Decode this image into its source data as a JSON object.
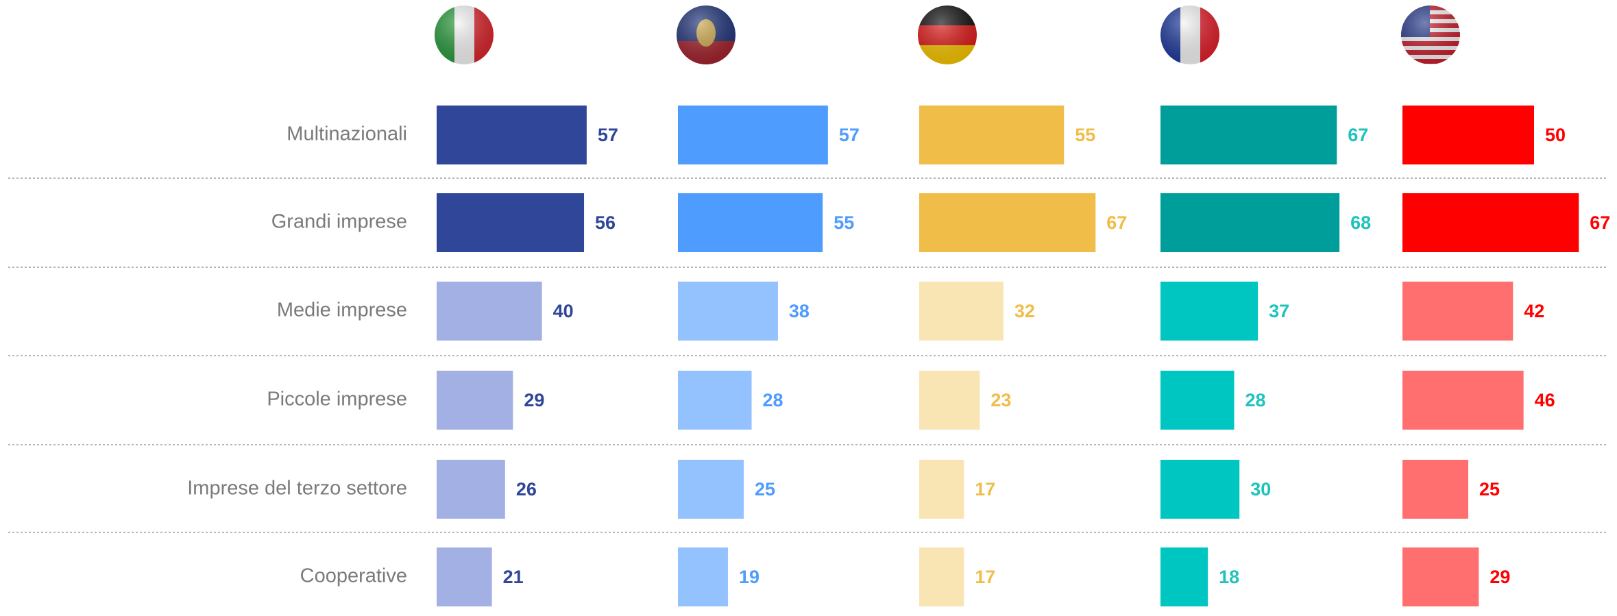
{
  "chart_data": {
    "type": "bar",
    "categories": [
      "Multinazionali",
      "Grandi imprese",
      "Medie imprese",
      "Piccole imprese",
      "Imprese del terzo settore",
      "Cooperative"
    ],
    "series": [
      {
        "values": [
          57,
          56,
          40,
          29,
          26,
          21
        ],
        "colors": [
          "#2f4699",
          "#2f4699",
          "#a3b0e3",
          "#a3b0e3",
          "#a3b0e3",
          "#a3b0e3"
        ],
        "label_color": "#2f4699"
      },
      {
        "values": [
          57,
          55,
          38,
          28,
          25,
          19
        ],
        "colors": [
          "#4f9cff",
          "#4f9cff",
          "#93c2ff",
          "#93c2ff",
          "#93c2ff",
          "#93c2ff"
        ],
        "label_color": "#4f9cff"
      },
      {
        "values": [
          55,
          67,
          32,
          23,
          17,
          17
        ],
        "colors": [
          "#f0bd48",
          "#f0bd48",
          "#f9e4b4",
          "#f9e4b4",
          "#f9e4b4",
          "#f9e4b4"
        ],
        "label_color": "#f0bd48"
      },
      {
        "values": [
          67,
          68,
          37,
          28,
          30,
          18
        ],
        "colors": [
          "#009e9a",
          "#009e9a",
          "#00c6c1",
          "#00c6c1",
          "#00c6c1",
          "#00c6c1"
        ],
        "label_color": "#1fc3be"
      },
      {
        "values": [
          50,
          67,
          42,
          46,
          25,
          29
        ],
        "colors": [
          "#ff0000",
          "#ff0000",
          "#ff6f6f",
          "#ff6f6f",
          "#ff6f6f",
          "#ff6f6f"
        ],
        "label_color": "#ff0000"
      }
    ]
  }
}
